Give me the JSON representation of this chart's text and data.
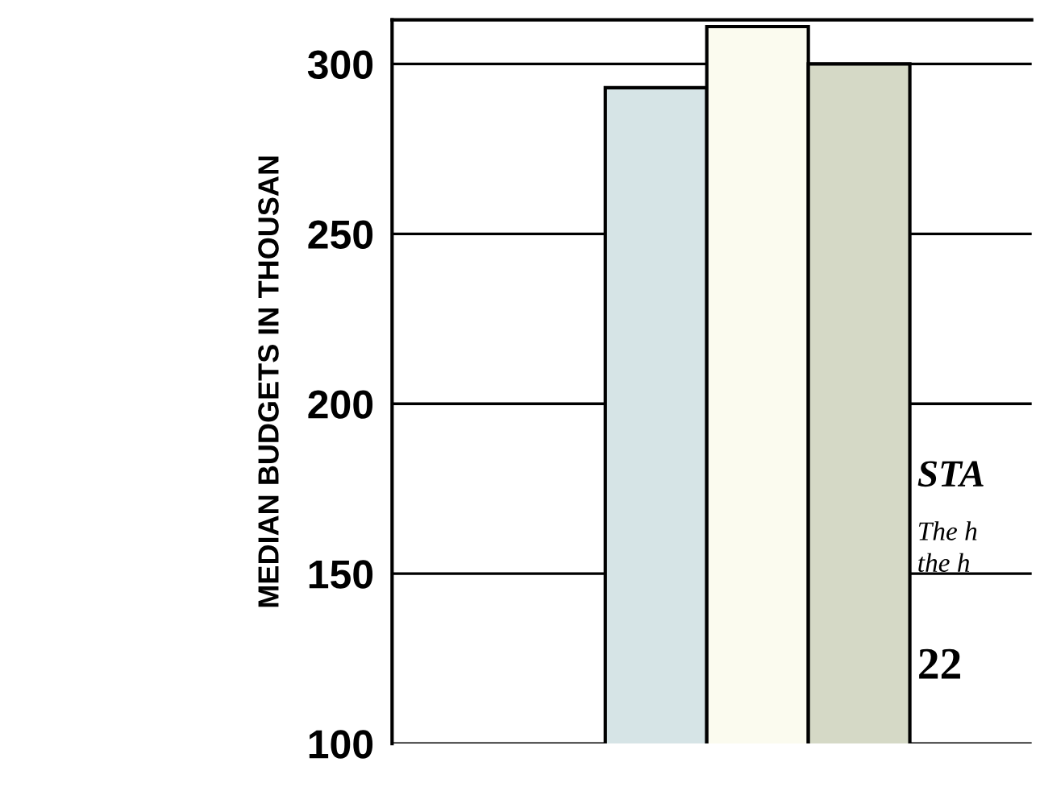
{
  "chart_data": {
    "type": "bar",
    "ylabel": "MEDIAN BUDGETS IN THOUSAN",
    "categories": [
      null,
      null,
      null
    ],
    "values": [
      293,
      311,
      300
    ],
    "colors": [
      "#d6e4e6",
      "#fbfbef",
      "#d5d9c6"
    ],
    "ylim": [
      100,
      313
    ],
    "yticks": [
      100,
      150,
      200,
      250,
      300
    ],
    "grid": "y",
    "annotations": [
      "STA",
      "The h",
      "the h",
      "22"
    ]
  }
}
